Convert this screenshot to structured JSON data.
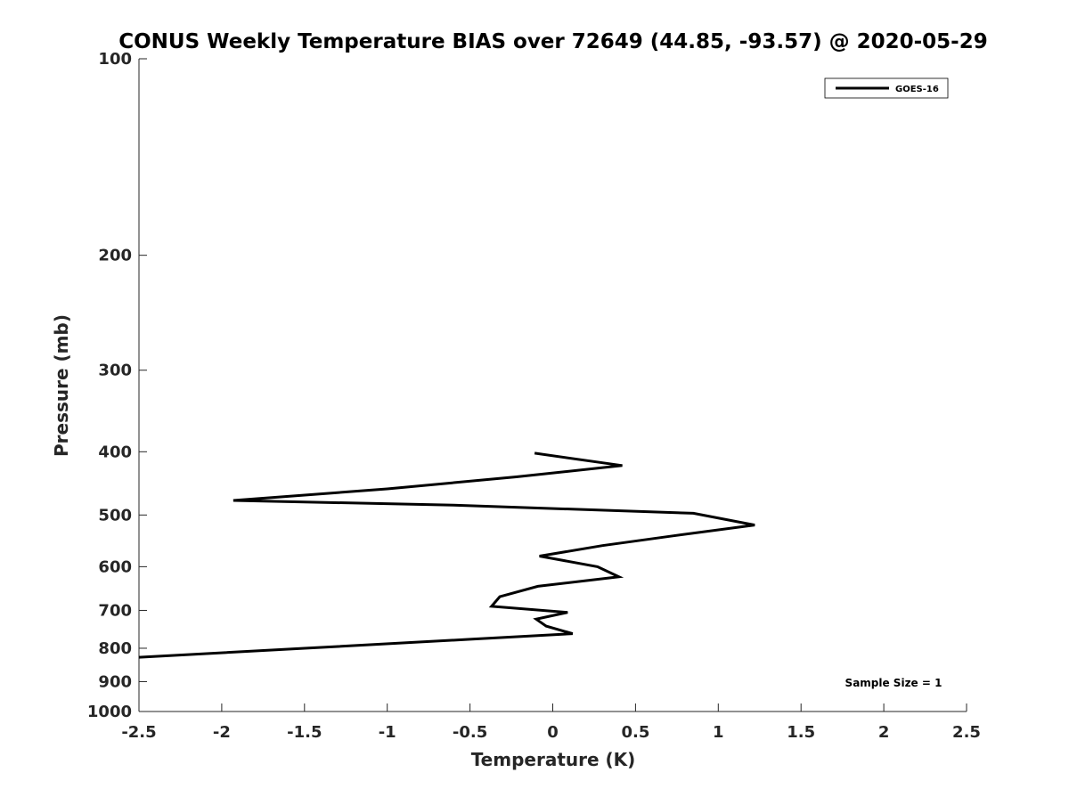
{
  "chart_data": {
    "type": "line",
    "title": "CONUS Weekly Temperature BIAS over 72649 (44.85, -93.57) @ 2020-05-29",
    "xlabel": "Temperature (K)",
    "ylabel": "Pressure (mb)",
    "xlim": [
      -2.5,
      2.5
    ],
    "ylim": [
      100,
      1000
    ],
    "y_scale": "log",
    "y_reversed": true,
    "grid": false,
    "legend_position": "top-right",
    "x_ticks": [
      -2.5,
      -2,
      -1.5,
      -1,
      -0.5,
      0,
      0.5,
      1,
      1.5,
      2,
      2.5
    ],
    "x_tick_labels": [
      "-2.5",
      "-2",
      "-1.5",
      "-1",
      "-0.5",
      "0",
      "0.5",
      "1",
      "1.5",
      "2",
      "2.5"
    ],
    "y_ticks": [
      100,
      200,
      300,
      400,
      500,
      600,
      700,
      800,
      900,
      1000
    ],
    "y_tick_labels": [
      "100",
      "200",
      "300",
      "400",
      "500",
      "600",
      "700",
      "800",
      "900",
      "1000"
    ],
    "series": [
      {
        "name": "GOES-16",
        "color": "#000000",
        "points": [
          {
            "x": -0.11,
            "p": 402
          },
          {
            "x": 0.42,
            "p": 420
          },
          {
            "x": -0.22,
            "p": 437
          },
          {
            "x": -1.0,
            "p": 456
          },
          {
            "x": -1.93,
            "p": 475
          },
          {
            "x": -0.6,
            "p": 483
          },
          {
            "x": 0.85,
            "p": 497
          },
          {
            "x": 1.22,
            "p": 518
          },
          {
            "x": 0.73,
            "p": 538
          },
          {
            "x": 0.3,
            "p": 557
          },
          {
            "x": -0.08,
            "p": 578
          },
          {
            "x": 0.27,
            "p": 600
          },
          {
            "x": 0.4,
            "p": 622
          },
          {
            "x": -0.09,
            "p": 643
          },
          {
            "x": -0.32,
            "p": 667
          },
          {
            "x": -0.37,
            "p": 690
          },
          {
            "x": 0.09,
            "p": 705
          },
          {
            "x": -0.1,
            "p": 722
          },
          {
            "x": -0.04,
            "p": 740
          },
          {
            "x": 0.12,
            "p": 760
          },
          {
            "x": -0.5,
            "p": 775
          },
          {
            "x": -1.5,
            "p": 800
          },
          {
            "x": -2.5,
            "p": 826
          }
        ]
      }
    ],
    "annotations": [
      {
        "text": "Sample Size = 1",
        "position": "bottom-right"
      }
    ]
  }
}
